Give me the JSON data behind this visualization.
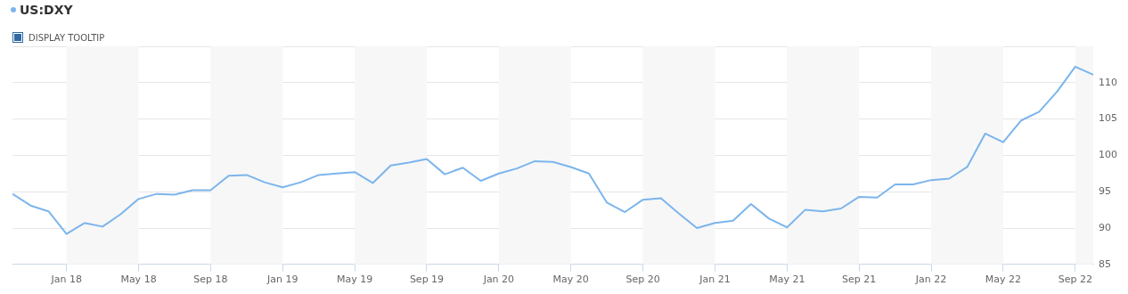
{
  "chart_data": {
    "type": "line",
    "x": [
      "2017-10",
      "2017-11",
      "2017-12",
      "2018-01",
      "2018-02",
      "2018-03",
      "2018-04",
      "2018-05",
      "2018-06",
      "2018-07",
      "2018-08",
      "2018-09",
      "2018-10",
      "2018-11",
      "2018-12",
      "2019-01",
      "2019-02",
      "2019-03",
      "2019-04",
      "2019-05",
      "2019-06",
      "2019-07",
      "2019-08",
      "2019-09",
      "2019-10",
      "2019-11",
      "2019-12",
      "2020-01",
      "2020-02",
      "2020-03",
      "2020-04",
      "2020-05",
      "2020-06",
      "2020-07",
      "2020-08",
      "2020-09",
      "2020-10",
      "2020-11",
      "2020-12",
      "2021-01",
      "2021-02",
      "2021-03",
      "2021-04",
      "2021-05",
      "2021-06",
      "2021-07",
      "2021-08",
      "2021-09",
      "2021-10",
      "2021-11",
      "2021-12",
      "2022-01",
      "2022-02",
      "2022-03",
      "2022-04",
      "2022-05",
      "2022-06",
      "2022-07",
      "2022-08",
      "2022-09",
      "2022-10"
    ],
    "series": [
      {
        "name": "US:DXY",
        "color": "#7cb5ec",
        "values": [
          94.7,
          93.1,
          92.3,
          89.2,
          90.7,
          90.2,
          91.9,
          94.0,
          94.7,
          94.6,
          95.2,
          95.2,
          97.2,
          97.3,
          96.3,
          95.6,
          96.3,
          97.3,
          97.5,
          97.7,
          96.2,
          98.6,
          99.0,
          99.5,
          97.4,
          98.3,
          96.5,
          97.5,
          98.2,
          99.2,
          99.1,
          98.4,
          97.5,
          93.5,
          92.2,
          93.9,
          94.1,
          92.0,
          90.0,
          90.7,
          91.0,
          93.3,
          91.3,
          90.1,
          92.5,
          92.3,
          92.7,
          94.3,
          94.2,
          96.0,
          96.0,
          96.6,
          96.8,
          98.4,
          103.0,
          101.8,
          104.8,
          106.0,
          108.8,
          112.2,
          111.1
        ]
      }
    ],
    "xlim": [
      "2017-10",
      "2022-10"
    ],
    "xticks": [
      {
        "value": "2018-01",
        "label": "Jan 18"
      },
      {
        "value": "2018-05",
        "label": "May 18"
      },
      {
        "value": "2018-09",
        "label": "Sep 18"
      },
      {
        "value": "2019-01",
        "label": "Jan 19"
      },
      {
        "value": "2019-05",
        "label": "May 19"
      },
      {
        "value": "2019-09",
        "label": "Sep 19"
      },
      {
        "value": "2020-01",
        "label": "Jan 20"
      },
      {
        "value": "2020-05",
        "label": "May 20"
      },
      {
        "value": "2020-09",
        "label": "Sep 20"
      },
      {
        "value": "2021-01",
        "label": "Jan 21"
      },
      {
        "value": "2021-05",
        "label": "May 21"
      },
      {
        "value": "2021-09",
        "label": "Sep 21"
      },
      {
        "value": "2022-01",
        "label": "Jan 22"
      },
      {
        "value": "2022-05",
        "label": "May 22"
      },
      {
        "value": "2022-09",
        "label": "Sep 22"
      }
    ],
    "ylim": [
      85,
      115
    ],
    "yticks": [
      85,
      90,
      95,
      100,
      105,
      110,
      {
        "value": 115,
        "label": null
      }
    ],
    "bands": [
      {
        "axis": "x",
        "from": "2018-01",
        "to": "2018-05",
        "color": "#f7f7f7"
      },
      {
        "axis": "x",
        "from": "2018-09",
        "to": "2019-01",
        "color": "#f7f7f7"
      },
      {
        "axis": "x",
        "from": "2019-05",
        "to": "2019-09",
        "color": "#f7f7f7"
      },
      {
        "axis": "x",
        "from": "2020-01",
        "to": "2020-05",
        "color": "#f7f7f7"
      },
      {
        "axis": "x",
        "from": "2020-09",
        "to": "2021-01",
        "color": "#f7f7f7"
      },
      {
        "axis": "x",
        "from": "2021-05",
        "to": "2021-09",
        "color": "#f7f7f7"
      },
      {
        "axis": "x",
        "from": "2022-01",
        "to": "2022-05",
        "color": "#f7f7f7"
      },
      {
        "axis": "x",
        "from": "2022-09",
        "to": "2022-10",
        "color": "#f7f7f7"
      }
    ],
    "annotations": [
      "DISPLAY TOOLTIP"
    ],
    "grid": "y",
    "legend": "top left",
    "marker": "none"
  }
}
